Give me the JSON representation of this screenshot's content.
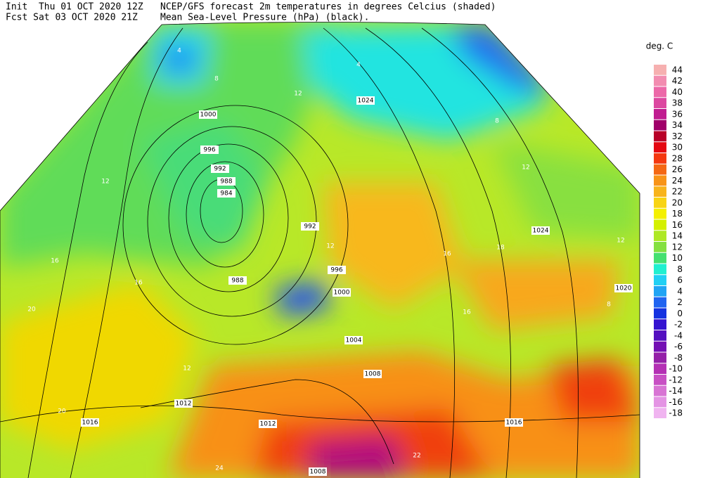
{
  "header": {
    "init": "Init  Thu 01 OCT 2020 12Z",
    "fcst": "Fcst Sat 03 OCT 2020 21Z",
    "title": "NCEP/GFS forecast 2m temperatures in degrees Celcius (shaded)",
    "subtitle": "Mean Sea-Level Pressure (hPa) (black)."
  },
  "legend": {
    "title": "deg. C",
    "labels": [
      "44",
      "42",
      "40",
      "38",
      "36",
      "34",
      "32",
      "30",
      "28",
      "26",
      "24",
      "22",
      "20",
      "18",
      "16",
      "14",
      "12",
      "10",
      "8",
      "6",
      "4",
      "2",
      "0",
      "-2",
      "-4",
      "-6",
      "-8",
      "-10",
      "-12",
      "-14",
      "-16",
      "-18"
    ],
    "colors": [
      "#f6b0b0",
      "#f28cb0",
      "#ec68a8",
      "#dc48a0",
      "#c01c90",
      "#a0006a",
      "#b80028",
      "#e40812",
      "#f43810",
      "#f46814",
      "#f89418",
      "#f8b41c",
      "#f8d414",
      "#f4f000",
      "#d4f000",
      "#aee824",
      "#84e040",
      "#44e070",
      "#20f0d0",
      "#20d0f4",
      "#20a4f4",
      "#2064f0",
      "#1432e0",
      "#3414d0",
      "#5410c0",
      "#7410b4",
      "#9420a8",
      "#b430b4",
      "#c850c4",
      "#d874d4",
      "#e494e4",
      "#f0b4f0"
    ]
  },
  "map": {
    "isobar_labels": [
      "1000",
      "996",
      "992",
      "988",
      "984",
      "992",
      "996",
      "1000",
      "988",
      "1024",
      "1024",
      "1020",
      "1004",
      "1008",
      "1012",
      "1012",
      "1016",
      "1016",
      "1008"
    ],
    "temperature_labels": [
      "12",
      "16",
      "20",
      "20",
      "12",
      "16",
      "12",
      "8",
      "4",
      "12",
      "16",
      "8",
      "4",
      "12",
      "18",
      "16",
      "24",
      "22",
      "12",
      "8"
    ]
  }
}
